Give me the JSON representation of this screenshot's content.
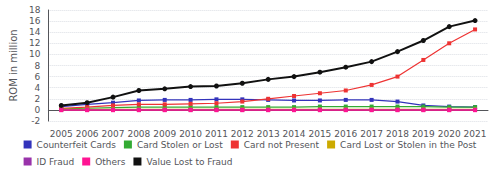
{
  "chart_data": {
    "type": "line",
    "categories": [
      "2005",
      "2006",
      "2007",
      "2008",
      "2009",
      "2010",
      "2011",
      "2012",
      "2013",
      "2014",
      "2015",
      "2016",
      "2017",
      "2018",
      "2019",
      "2020",
      "2021"
    ],
    "series": [
      {
        "name": "Counterfeit Cards",
        "color": "#3333bb",
        "marker": "square",
        "values": [
          0.6,
          1.0,
          1.3,
          1.7,
          1.8,
          1.8,
          1.9,
          1.9,
          1.8,
          1.7,
          1.7,
          1.8,
          1.8,
          1.5,
          0.8,
          0.6,
          0.5
        ]
      },
      {
        "name": "Card Stolen or Lost",
        "color": "#33aa33",
        "marker": "square",
        "values": [
          0.2,
          0.3,
          0.4,
          0.5,
          0.5,
          0.5,
          0.5,
          0.5,
          0.5,
          0.5,
          0.6,
          0.6,
          0.6,
          0.6,
          0.6,
          0.5,
          0.5
        ]
      },
      {
        "name": "Card not Present",
        "color": "#ee3333",
        "marker": "square",
        "values": [
          0.3,
          0.5,
          0.8,
          1.0,
          1.0,
          1.1,
          1.2,
          1.5,
          2.0,
          2.5,
          3.0,
          3.5,
          4.5,
          6.0,
          9.0,
          12.0,
          14.5
        ]
      },
      {
        "name": "Card Lost or Stolen in the Post",
        "color": "#ccaa00",
        "marker": "square",
        "values": [
          0.08,
          0.08,
          0.08,
          0.08,
          0.08,
          0.08,
          0.08,
          0.08,
          0.08,
          0.08,
          0.08,
          0.08,
          0.08,
          0.08,
          0.08,
          0.08,
          0.08
        ]
      },
      {
        "name": "ID Fraud",
        "color": "#9933aa",
        "marker": "square",
        "values": [
          0.03,
          0.03,
          0.03,
          0.03,
          0.03,
          0.03,
          0.03,
          0.03,
          0.03,
          0.03,
          0.03,
          0.03,
          0.03,
          0.03,
          0.03,
          0.03,
          0.03
        ]
      },
      {
        "name": "Others",
        "color": "#ff1493",
        "marker": "square",
        "values": [
          -0.05,
          -0.05,
          -0.05,
          -0.05,
          -0.05,
          -0.05,
          -0.05,
          -0.05,
          -0.05,
          -0.05,
          -0.05,
          -0.05,
          -0.05,
          -0.05,
          -0.05,
          -0.05,
          -0.05
        ]
      },
      {
        "name": "Value Lost to Fraud",
        "color": "#111111",
        "marker": "circle",
        "values": [
          0.8,
          1.3,
          2.3,
          3.5,
          3.8,
          4.2,
          4.3,
          4.8,
          5.5,
          6.0,
          6.8,
          7.7,
          8.7,
          10.5,
          12.5,
          15.0,
          16.1
        ]
      }
    ],
    "ylabel": "ROM in million",
    "ylim": [
      -2,
      18
    ],
    "yticks": [
      -2,
      0,
      2,
      4,
      6,
      8,
      10,
      12,
      14,
      16,
      18
    ],
    "grid": true,
    "legend": "bottom"
  }
}
